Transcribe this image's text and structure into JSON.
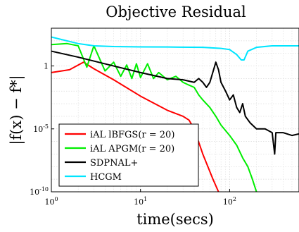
{
  "chart_data": {
    "type": "line",
    "title": "Objective Residual",
    "xlabel": "time(secs)",
    "ylabel": "|f(x) − f*|",
    "x_scale": "log",
    "y_scale": "log",
    "xlim": [
      1,
      600
    ],
    "ylim": [
      1e-10,
      1000
    ],
    "x_ticks": [
      {
        "base": "10",
        "exp": "0",
        "value": 1
      },
      {
        "base": "10",
        "exp": "1",
        "value": 10
      },
      {
        "base": "10",
        "exp": "2",
        "value": 100
      }
    ],
    "y_ticks": [
      {
        "base": "10",
        "exp": "-10",
        "value": 1e-10
      },
      {
        "base": "10",
        "exp": "-5",
        "value": 1e-05
      },
      {
        "base": "1",
        "exp": "0",
        "value": 1
      }
    ],
    "grid": true,
    "legend_position": "bottom-left",
    "series": [
      {
        "name": "iAL lBFGS(r = 20)",
        "color": "#ff0000",
        "points": [
          [
            1,
            0.3
          ],
          [
            1.6,
            0.5
          ],
          [
            2.3,
            2.0
          ],
          [
            3.0,
            0.6
          ],
          [
            5,
            0.08
          ],
          [
            10,
            0.004
          ],
          [
            20,
            0.0003
          ],
          [
            30,
            0.0001
          ],
          [
            35,
            5e-05
          ],
          [
            40,
            1e-05
          ],
          [
            50,
            1e-07
          ],
          [
            65,
            1e-09
          ],
          [
            75,
            1e-10
          ]
        ]
      },
      {
        "name": "iAL APGM(r = 20)",
        "color": "#00ee00",
        "points": [
          [
            1,
            50
          ],
          [
            1.5,
            60
          ],
          [
            2,
            40
          ],
          [
            2.5,
            0.8
          ],
          [
            3,
            40
          ],
          [
            4,
            0.4
          ],
          [
            5,
            2
          ],
          [
            6,
            0.15
          ],
          [
            7,
            1.2
          ],
          [
            8,
            0.1
          ],
          [
            9,
            1.5
          ],
          [
            10,
            0.12
          ],
          [
            12,
            1.5
          ],
          [
            14,
            0.1
          ],
          [
            16,
            0.3
          ],
          [
            20,
            0.08
          ],
          [
            25,
            0.15
          ],
          [
            30,
            0.05
          ],
          [
            35,
            0.03
          ],
          [
            40,
            0.02
          ],
          [
            45,
            0.005
          ],
          [
            50,
            0.002
          ],
          [
            60,
            0.0005
          ],
          [
            70,
            0.0001
          ],
          [
            80,
            2e-05
          ],
          [
            100,
            3e-06
          ],
          [
            120,
            5e-07
          ],
          [
            140,
            5e-08
          ],
          [
            160,
            1e-08
          ],
          [
            180,
            1e-09
          ],
          [
            200,
            1e-10
          ]
        ]
      },
      {
        "name": "SDPNAL+",
        "color": "#000000",
        "points": [
          [
            1,
            15
          ],
          [
            2,
            5
          ],
          [
            5,
            1
          ],
          [
            10,
            0.3
          ],
          [
            20,
            0.1
          ],
          [
            30,
            0.08
          ],
          [
            40,
            0.05
          ],
          [
            45,
            0.1
          ],
          [
            50,
            0.05
          ],
          [
            55,
            0.02
          ],
          [
            60,
            0.05
          ],
          [
            70,
            2
          ],
          [
            75,
            0.5
          ],
          [
            80,
            0.05
          ],
          [
            90,
            0.01
          ],
          [
            100,
            0.002
          ],
          [
            110,
            0.005
          ],
          [
            120,
            0.0005
          ],
          [
            130,
            0.0002
          ],
          [
            140,
            0.001
          ],
          [
            150,
            0.0001
          ],
          [
            170,
            3e-05
          ],
          [
            200,
            1e-05
          ],
          [
            250,
            1e-05
          ],
          [
            300,
            5e-06
          ],
          [
            320,
            1e-07
          ],
          [
            330,
            5e-06
          ],
          [
            400,
            5e-06
          ],
          [
            500,
            3e-06
          ],
          [
            600,
            4e-06
          ]
        ]
      },
      {
        "name": "HCGM",
        "color": "#00e5ff",
        "points": [
          [
            1,
            200
          ],
          [
            2,
            60
          ],
          [
            3,
            40
          ],
          [
            5,
            35
          ],
          [
            10,
            33
          ],
          [
            20,
            32
          ],
          [
            50,
            30
          ],
          [
            80,
            25
          ],
          [
            100,
            20
          ],
          [
            120,
            8
          ],
          [
            135,
            3
          ],
          [
            145,
            3
          ],
          [
            160,
            15
          ],
          [
            200,
            30
          ],
          [
            300,
            40
          ],
          [
            400,
            40
          ],
          [
            600,
            40
          ]
        ]
      }
    ]
  }
}
